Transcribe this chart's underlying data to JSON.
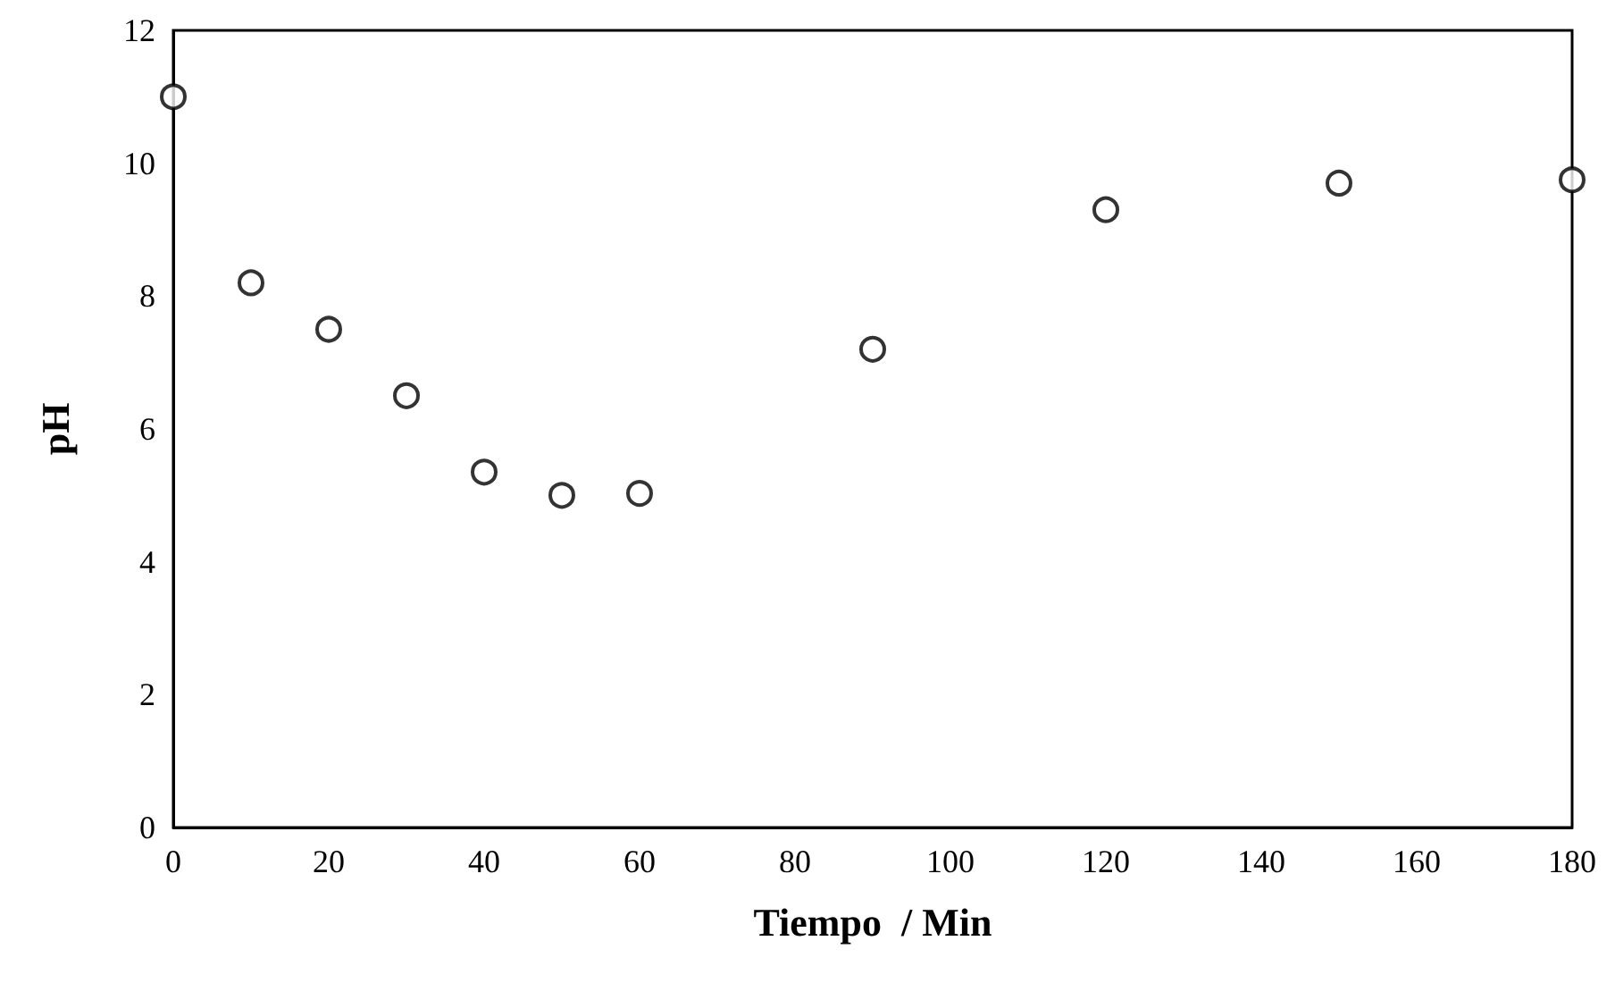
{
  "chart_data": {
    "type": "scatter",
    "xlabel": "Tiempo  / Min",
    "ylabel": "pH",
    "x": [
      0,
      10,
      20,
      30,
      40,
      50,
      60,
      90,
      120,
      150,
      180
    ],
    "series": [
      {
        "color": "#000000",
        "values": [
          11.0,
          8.2,
          7.5,
          6.5,
          5.35,
          5.0,
          5.03,
          7.2,
          9.3,
          9.7,
          9.75
        ]
      }
    ],
    "xlim": [
      0,
      180
    ],
    "xticks": [
      0,
      20,
      40,
      60,
      80,
      100,
      120,
      140,
      160,
      180
    ],
    "ylim": [
      0,
      12
    ],
    "yticks": [
      0,
      2,
      4,
      6,
      8,
      10,
      12
    ],
    "grid": false,
    "marker": "circle"
  }
}
